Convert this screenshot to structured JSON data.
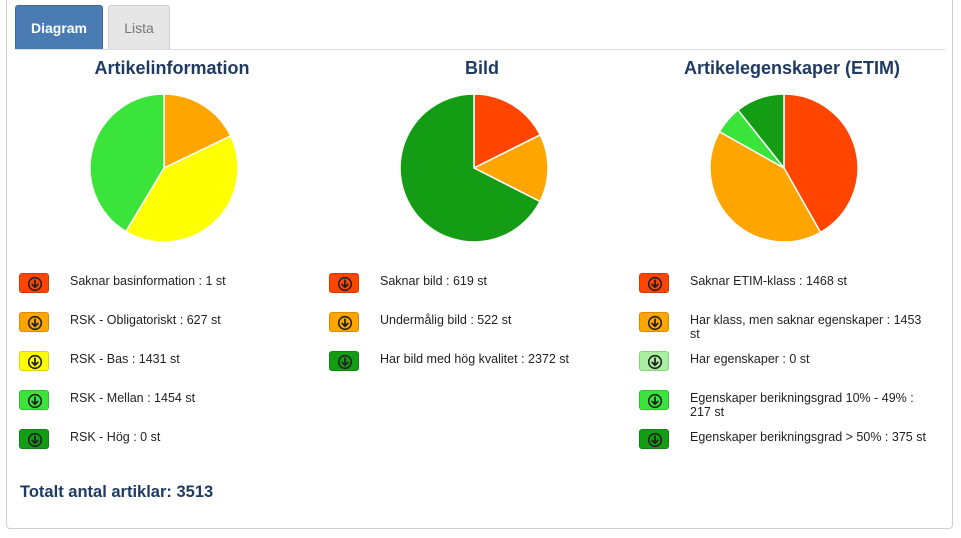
{
  "tabs": {
    "active_label": "Diagram",
    "inactive_label": "Lista"
  },
  "arrow_icon": "circle-arrow-down-icon",
  "charts": [
    {
      "title": "Artikelinformation",
      "items": [
        {
          "label": "Saknar basinformation : 1 st",
          "color": "#ff4500"
        },
        {
          "label": "RSK - Obligatoriskt : 627 st",
          "color": "#ffa500"
        },
        {
          "label": "RSK - Bas : 1431 st",
          "color": "#ffff00"
        },
        {
          "label": "RSK - Mellan : 1454 st",
          "color": "#3ae43a"
        },
        {
          "label": "RSK - Hög : 0 st",
          "color": "#149c14"
        }
      ]
    },
    {
      "title": "Bild",
      "items": [
        {
          "label": "Saknar bild : 619 st",
          "color": "#ff4500"
        },
        {
          "label": "Undermålig bild : 522 st",
          "color": "#ffa500"
        },
        {
          "label": "Har bild med hög kvalitet : 2372 st",
          "color": "#149c14"
        }
      ]
    },
    {
      "title": "Artikelegenskaper (ETIM)",
      "items": [
        {
          "label": "Saknar ETIM-klass : 1468 st",
          "color": "#ff4500"
        },
        {
          "label": "Har klass, men saknar egenskaper : 1453 st",
          "color": "#ffa500"
        },
        {
          "label": "Har egenskaper : 0 st",
          "color": "#a8f0a0"
        },
        {
          "label": "Egenskaper berikningsgrad 10% - 49% : 217 st",
          "color": "#3ae43a"
        },
        {
          "label": "Egenskaper berikningsgrad > 50% : 375 st",
          "color": "#149c14"
        }
      ]
    }
  ],
  "total": "Totalt antal artiklar: 3513",
  "chart_data": [
    {
      "type": "pie",
      "title": "Artikelinformation",
      "categories": [
        "Saknar basinformation",
        "RSK - Obligatoriskt",
        "RSK - Bas",
        "RSK - Mellan",
        "RSK - Hög"
      ],
      "values": [
        1,
        627,
        1431,
        1454,
        0
      ],
      "colors": [
        "#ff4500",
        "#ffa500",
        "#ffff00",
        "#3ae43a",
        "#149c14"
      ]
    },
    {
      "type": "pie",
      "title": "Bild",
      "categories": [
        "Saknar bild",
        "Undermålig bild",
        "Har bild med hög kvalitet"
      ],
      "values": [
        619,
        522,
        2372
      ],
      "colors": [
        "#ff4500",
        "#ffa500",
        "#149c14"
      ]
    },
    {
      "type": "pie",
      "title": "Artikelegenskaper (ETIM)",
      "categories": [
        "Saknar ETIM-klass",
        "Har klass, men saknar egenskaper",
        "Har egenskaper",
        "Egenskaper berikningsgrad 10% - 49%",
        "Egenskaper berikningsgrad > 50%"
      ],
      "values": [
        1468,
        1453,
        0,
        217,
        375
      ],
      "colors": [
        "#ff4500",
        "#ffa500",
        "#a8f0a0",
        "#3ae43a",
        "#149c14"
      ]
    }
  ]
}
